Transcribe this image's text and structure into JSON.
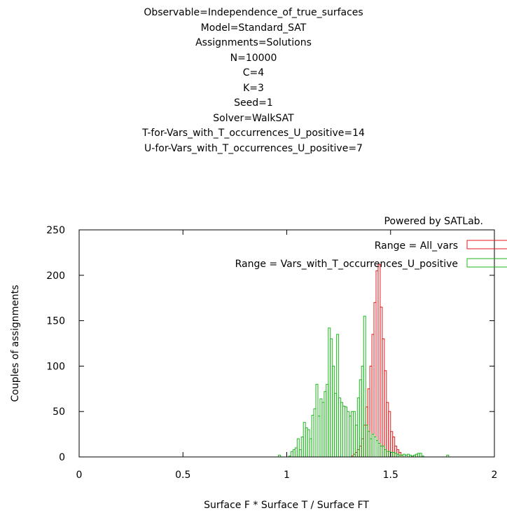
{
  "title_lines": [
    "Observable=Independence_of_true_surfaces",
    "Model=Standard_SAT",
    "Assignments=Solutions",
    "N=10000",
    "C=4",
    "K=3",
    "Seed=1",
    "Solver=WalkSAT",
    "T-for-Vars_with_T_occurrences_U_positive=14",
    "U-for-Vars_with_T_occurrences_U_positive=7"
  ],
  "credit": "Powered by SATLab.",
  "colors": {
    "all_vars": "#e41a1c",
    "t_vars": "#1fb81f",
    "axis": "#000000"
  },
  "chart_data": {
    "type": "bar",
    "xlabel": "Surface F * Surface T / Surface FT",
    "ylabel": "Couples of assignments",
    "xlim": [
      0,
      2
    ],
    "ylim": [
      0,
      250
    ],
    "xticks": [
      "0",
      "0.5",
      "1",
      "1.5",
      "2"
    ],
    "yticks": [
      "0",
      "50",
      "100",
      "150",
      "200",
      "250"
    ],
    "bin_width": 0.01,
    "legend_position": "top-right",
    "series": [
      {
        "name": "Range = All_vars",
        "x": [
          1.31,
          1.32,
          1.33,
          1.34,
          1.35,
          1.36,
          1.37,
          1.38,
          1.39,
          1.4,
          1.41,
          1.42,
          1.43,
          1.44,
          1.45,
          1.46,
          1.47,
          1.48,
          1.49,
          1.5,
          1.51,
          1.52,
          1.53,
          1.54,
          1.55
        ],
        "values": [
          1,
          3,
          5,
          8,
          12,
          20,
          35,
          55,
          75,
          100,
          135,
          170,
          205,
          212,
          165,
          130,
          95,
          60,
          50,
          28,
          22,
          12,
          8,
          5,
          2
        ]
      },
      {
        "name": "Range = Vars_with_T_occurrences_U_positive",
        "x": [
          0.96,
          0.97,
          0.98,
          0.99,
          1.0,
          1.01,
          1.02,
          1.03,
          1.04,
          1.05,
          1.06,
          1.07,
          1.08,
          1.09,
          1.1,
          1.11,
          1.12,
          1.13,
          1.14,
          1.15,
          1.16,
          1.17,
          1.18,
          1.19,
          1.2,
          1.21,
          1.22,
          1.23,
          1.24,
          1.25,
          1.26,
          1.27,
          1.28,
          1.29,
          1.3,
          1.31,
          1.32,
          1.33,
          1.34,
          1.35,
          1.36,
          1.37,
          1.38,
          1.39,
          1.4,
          1.41,
          1.42,
          1.43,
          1.44,
          1.45,
          1.46,
          1.47,
          1.48,
          1.49,
          1.5,
          1.51,
          1.52,
          1.53,
          1.54,
          1.55,
          1.56,
          1.57,
          1.58,
          1.59,
          1.6,
          1.61,
          1.62,
          1.63,
          1.64,
          1.65,
          1.77
        ],
        "values": [
          2,
          0,
          0,
          0,
          0,
          1,
          6,
          8,
          10,
          20,
          8,
          22,
          38,
          32,
          30,
          20,
          46,
          53,
          80,
          45,
          64,
          60,
          72,
          80,
          142,
          130,
          100,
          70,
          135,
          65,
          60,
          56,
          55,
          50,
          45,
          50,
          50,
          35,
          65,
          85,
          100,
          155,
          35,
          28,
          20,
          25,
          22,
          18,
          15,
          12,
          12,
          8,
          6,
          6,
          5,
          5,
          4,
          3,
          2,
          2,
          3,
          2,
          3,
          2,
          1,
          2,
          3,
          4,
          4,
          1,
          2
        ]
      }
    ]
  }
}
